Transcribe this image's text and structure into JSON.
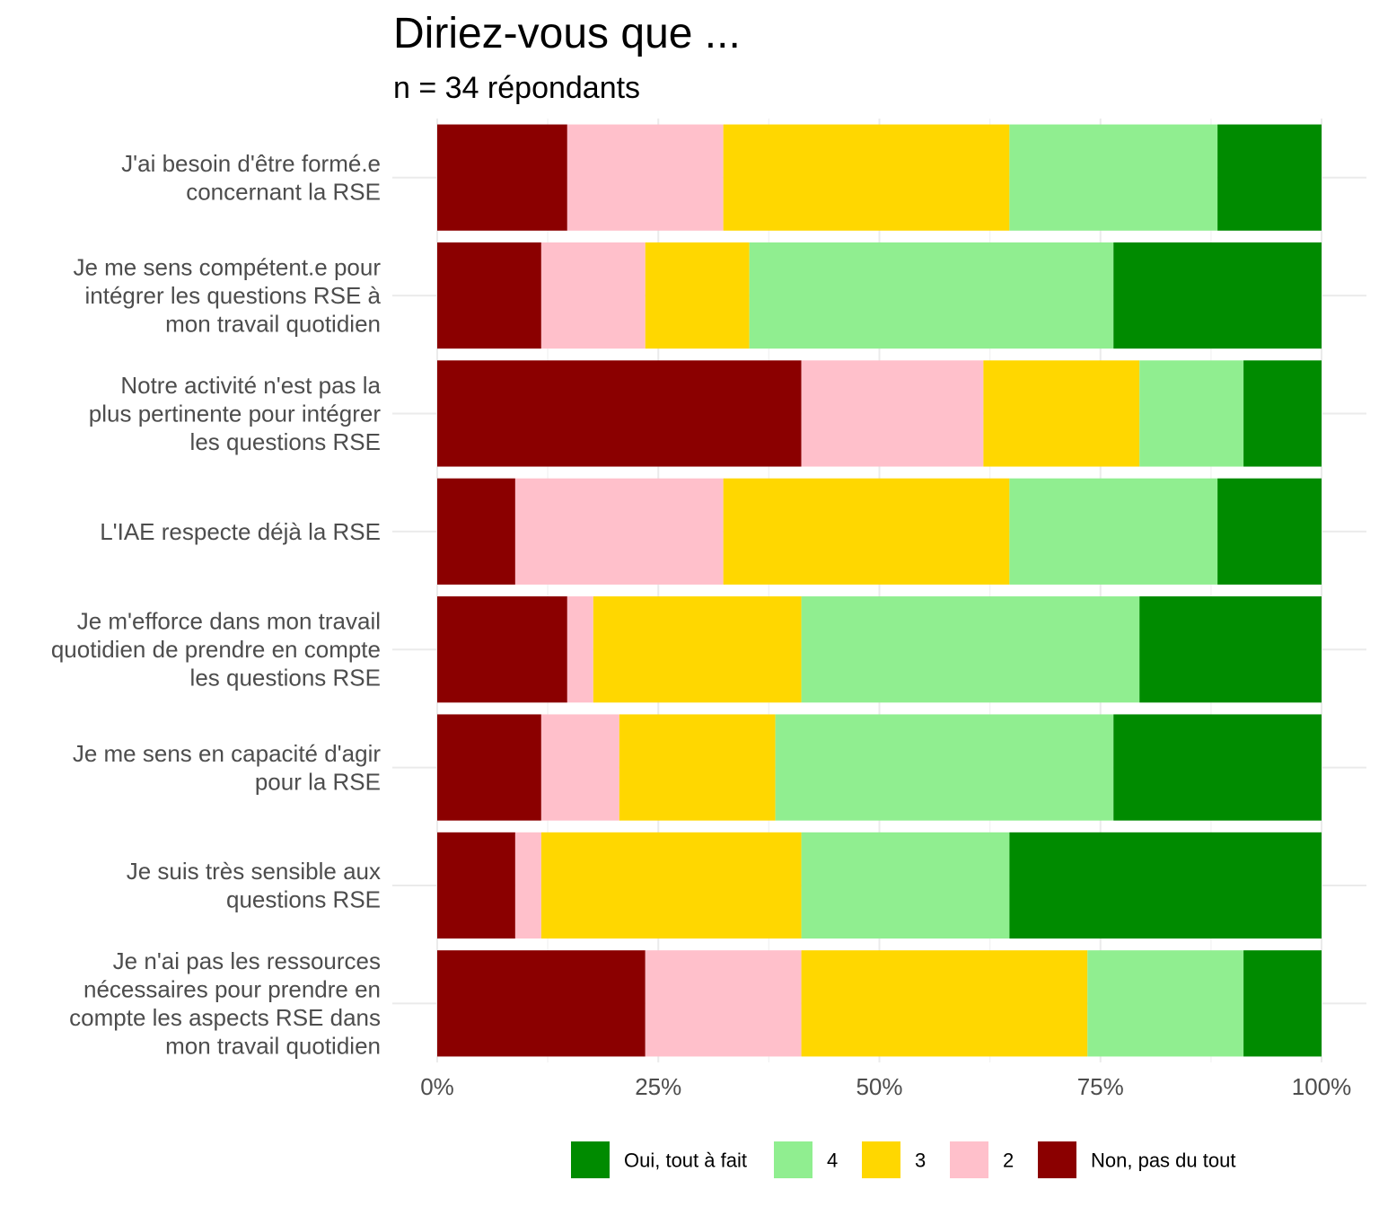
{
  "chart_data": {
    "type": "bar",
    "orientation": "horizontal",
    "stacked": true,
    "normalized": true,
    "title": "Diriez-vous que ...",
    "subtitle": "n = 34 répondants",
    "categories": [
      [
        "J'ai besoin d'être formé.e",
        "concernant la RSE"
      ],
      [
        "Je me sens compétent.e pour",
        "intégrer les questions RSE à",
        "mon travail quotidien"
      ],
      [
        "Notre activité n'est pas la",
        "plus pertinente pour intégrer",
        "les questions RSE"
      ],
      [
        "L'IAE respecte déjà la RSE"
      ],
      [
        "Je m'efforce dans mon travail",
        "quotidien de prendre en compte",
        "les questions RSE"
      ],
      [
        "Je me sens en capacité d'agir",
        "pour la RSE"
      ],
      [
        "Je suis très sensible aux",
        "questions RSE"
      ],
      [
        "Je n'ai pas les ressources",
        "nécessaires pour prendre en",
        "compte les aspects RSE dans",
        "mon travail quotidien"
      ]
    ],
    "series": [
      {
        "name": "Non, pas du tout",
        "color": "#8b0000",
        "values": [
          5,
          4,
          14,
          3,
          5,
          4,
          3,
          8
        ]
      },
      {
        "name": "2",
        "color": "#ffc0cb",
        "values": [
          6,
          4,
          7,
          8,
          1,
          3,
          1,
          6
        ]
      },
      {
        "name": "3",
        "color": "#ffd700",
        "values": [
          11,
          4,
          6,
          11,
          8,
          6,
          10,
          11
        ]
      },
      {
        "name": "4",
        "color": "#90ee90",
        "values": [
          8,
          14,
          4,
          8,
          13,
          13,
          8,
          6
        ]
      },
      {
        "name": "Oui, tout à fait",
        "color": "#008b00",
        "values": [
          4,
          8,
          3,
          4,
          7,
          8,
          12,
          3
        ]
      }
    ],
    "xlim": [
      0,
      1
    ],
    "x_ticks": [
      "0%",
      "25%",
      "50%",
      "75%",
      "100%"
    ],
    "grid": true,
    "legend": {
      "position": "bottom",
      "order": [
        "Oui, tout à fait",
        "4",
        "3",
        "2",
        "Non, pas du tout"
      ]
    }
  }
}
